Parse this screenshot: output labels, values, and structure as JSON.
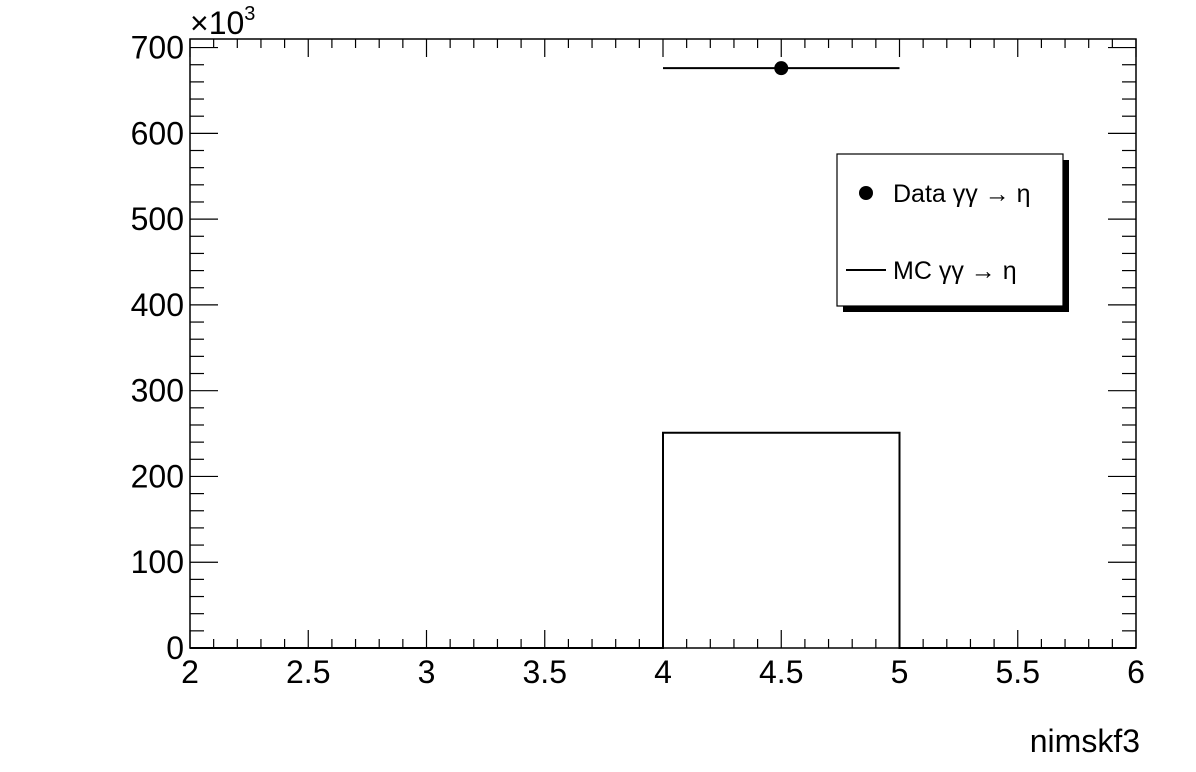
{
  "chart_data": {
    "type": "histogram",
    "xlabel": "nimskf3",
    "ylabel": "",
    "xlim": [
      2,
      6
    ],
    "ylim": [
      0,
      710
    ],
    "x_ticks": [
      "2",
      "2.5",
      "3",
      "3.5",
      "4",
      "4.5",
      "5",
      "5.5",
      "6"
    ],
    "y_ticks": [
      "0",
      "100",
      "200",
      "300",
      "400",
      "500",
      "600",
      "700"
    ],
    "y_multiplier": {
      "base": "×10",
      "exponent": "3"
    },
    "grid": false,
    "legend_position": "top-right",
    "series": [
      {
        "name": "Data γγ → η",
        "style": "points",
        "color": "#000000",
        "points": [
          {
            "x": 4.5,
            "y": 676,
            "xerr": 0.5
          }
        ]
      },
      {
        "name": "MC γγ → η",
        "style": "step",
        "color": "#000000",
        "bins": [
          {
            "x0": 4,
            "x1": 5,
            "y": 251
          }
        ]
      }
    ]
  }
}
